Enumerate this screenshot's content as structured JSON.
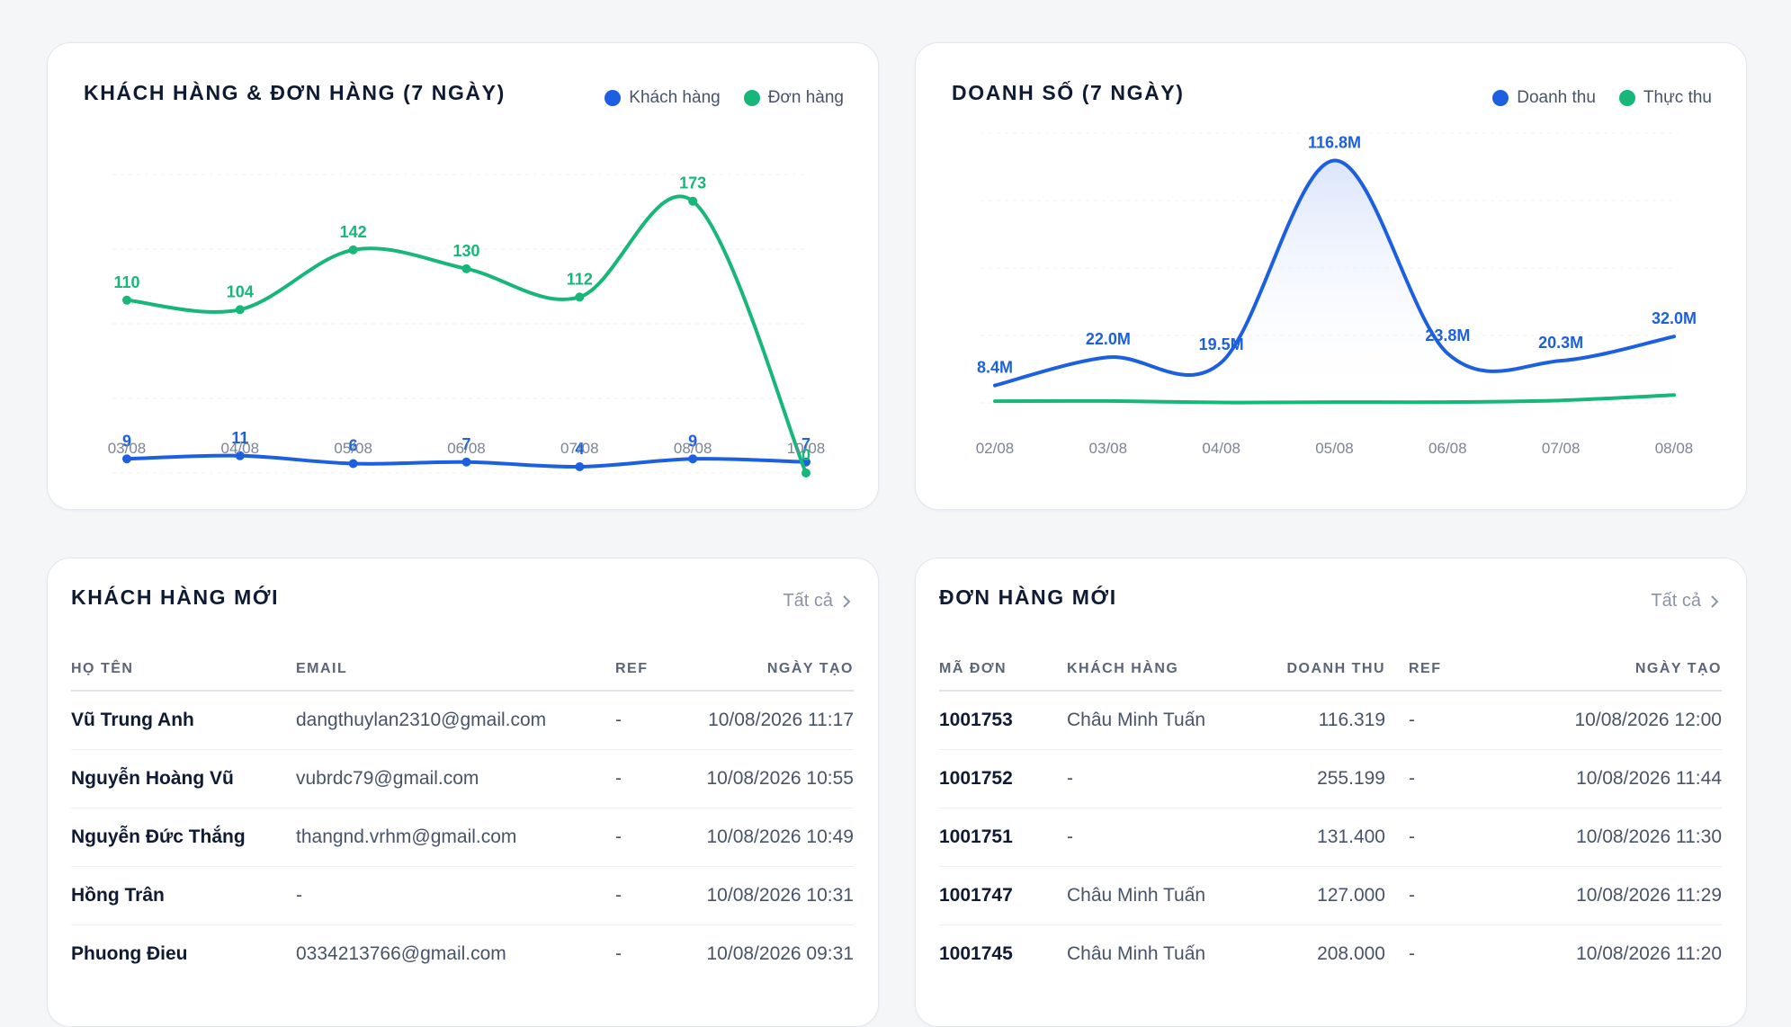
{
  "colors": {
    "blue": "#1c5fe0",
    "green": "#17b679",
    "axis": "#7a8496",
    "area_top": "#dbe5fb"
  },
  "customers_orders_card": {
    "title": "KHÁCH HÀNG & ĐƠN HÀNG (7 NGÀY)",
    "legend": [
      {
        "label": "Khách hàng",
        "color": "#1c5fe0"
      },
      {
        "label": "Đơn hàng",
        "color": "#17b679"
      }
    ]
  },
  "sales_card": {
    "title": "DOANH SỐ (7 NGÀY)",
    "legend": [
      {
        "label": "Doanh thu",
        "color": "#1c5fe0"
      },
      {
        "label": "Thực thu",
        "color": "#17b679"
      }
    ]
  },
  "chart_data": [
    {
      "type": "line",
      "title": "KHÁCH HÀNG & ĐƠN HÀNG (7 NGÀY)",
      "categories": [
        "03/08",
        "04/08",
        "05/08",
        "06/08",
        "07/08",
        "08/08",
        "10/08"
      ],
      "ylim": [
        0,
        190
      ],
      "grid": true,
      "legend_position": "top-right",
      "series": [
        {
          "name": "Khách hàng",
          "color": "#1c5fe0",
          "values": [
            9,
            11,
            6,
            7,
            4,
            9,
            7
          ],
          "labels": [
            "9",
            "11",
            "6",
            "7",
            "4",
            "9",
            "7"
          ]
        },
        {
          "name": "Đơn hàng",
          "color": "#17b679",
          "values": [
            110,
            104,
            142,
            130,
            112,
            173,
            0
          ],
          "labels": [
            "110",
            "104",
            "142",
            "130",
            "112",
            "173",
            "0"
          ]
        }
      ]
    },
    {
      "type": "area",
      "title": "DOANH SỐ (7 NGÀY)",
      "categories": [
        "02/08",
        "03/08",
        "04/08",
        "05/08",
        "06/08",
        "07/08",
        "08/08"
      ],
      "ylim": [
        0,
        130
      ],
      "grid": true,
      "legend_position": "top-right",
      "series": [
        {
          "name": "Doanh thu",
          "color": "#1c5fe0",
          "values": [
            8.4,
            22.0,
            19.5,
            116.8,
            23.8,
            20.3,
            32.0
          ],
          "labels": [
            "8.4M",
            "22.0M",
            "19.5M",
            "116.8M",
            "23.8M",
            "20.3M",
            "32.0M"
          ]
        },
        {
          "name": "Thực thu",
          "color": "#17b679",
          "values": [
            0.8,
            0.9,
            0.2,
            0.4,
            0.4,
            1.2,
            3.8
          ],
          "labels": []
        }
      ]
    }
  ],
  "new_customers": {
    "title": "KHÁCH HÀNG MỚI",
    "see_all": "Tất cả",
    "columns": [
      "HỌ TÊN",
      "EMAIL",
      "REF",
      "NGÀY TẠO"
    ],
    "rows": [
      [
        "Vũ Trung Anh",
        "dangthuylan2310@gmail.com",
        "-",
        "10/08/2026 11:17"
      ],
      [
        "Nguyễn Hoàng Vũ",
        "vubrdc79@gmail.com",
        "-",
        "10/08/2026 10:55"
      ],
      [
        "Nguyễn Đức Thắng",
        "thangnd.vrhm@gmail.com",
        "-",
        "10/08/2026 10:49"
      ],
      [
        "Hồng Trân",
        "-",
        "-",
        "10/08/2026 10:31"
      ],
      [
        "Phuong Đieu",
        "0334213766@gmail.com",
        "-",
        "10/08/2026 09:31"
      ]
    ]
  },
  "new_orders": {
    "title": "ĐƠN HÀNG MỚI",
    "see_all": "Tất cả",
    "columns": [
      "MÃ ĐƠN",
      "KHÁCH HÀNG",
      "DOANH THU",
      "REF",
      "NGÀY TẠO"
    ],
    "rows": [
      [
        "1001753",
        "Châu Minh Tuấn",
        "116.319",
        "-",
        "10/08/2026 12:00"
      ],
      [
        "1001752",
        "-",
        "255.199",
        "-",
        "10/08/2026 11:44"
      ],
      [
        "1001751",
        "-",
        "131.400",
        "-",
        "10/08/2026 11:30"
      ],
      [
        "1001747",
        "Châu Minh Tuấn",
        "127.000",
        "-",
        "10/08/2026 11:29"
      ],
      [
        "1001745",
        "Châu Minh Tuấn",
        "208.000",
        "-",
        "10/08/2026 11:20"
      ]
    ]
  }
}
